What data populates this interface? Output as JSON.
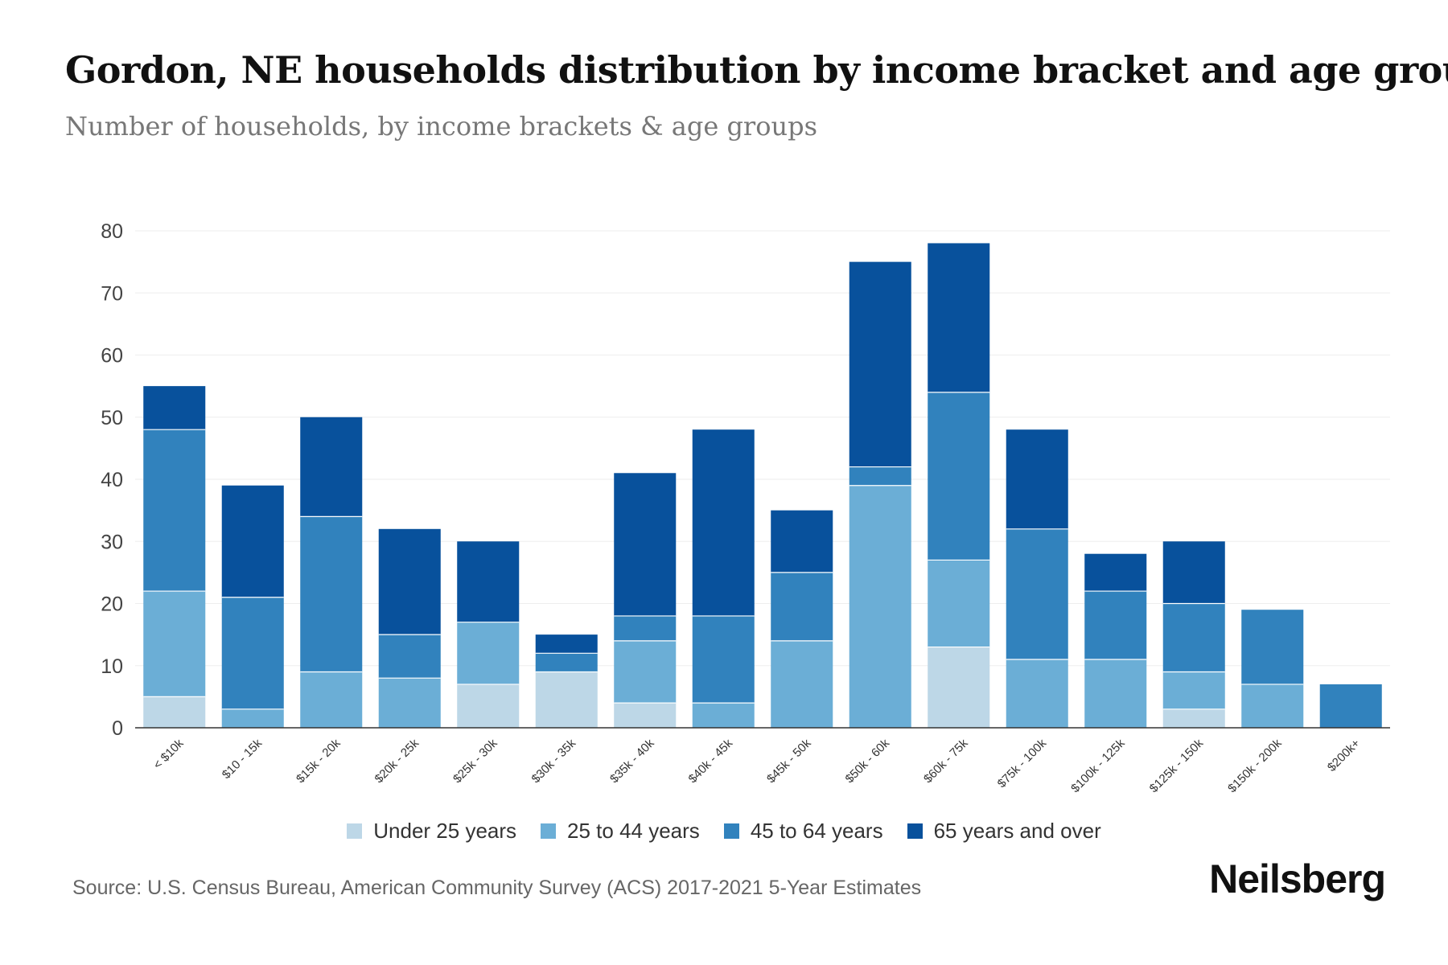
{
  "title": "Gordon, NE households distribution by income bracket and age group",
  "subtitle": "Number of households, by income brackets & age groups",
  "source": "Source: U.S. Census Bureau, American Community Survey (ACS) 2017-2021 5-Year Estimates",
  "brand": "Neilsberg",
  "colors": {
    "under_25": "#bdd7e7",
    "age_25_44": "#6baed6",
    "age_45_64": "#3182bd",
    "age_65_plus": "#08519c",
    "grid": "#eeeeee",
    "axis": "#333333"
  },
  "chart_data": {
    "type": "bar",
    "stacked": true,
    "categories": [
      "< $10k",
      "$10 - 15k",
      "$15k - 20k",
      "$20k - 25k",
      "$25k - 30k",
      "$30k - 35k",
      "$35k - 40k",
      "$40k - 45k",
      "$45k - 50k",
      "$50k - 60k",
      "$60k - 75k",
      "$75k - 100k",
      "$100k - 125k",
      "$125k - 150k",
      "$150k - 200k",
      "$200k+"
    ],
    "series": [
      {
        "name": "Under 25 years",
        "color_key": "under_25",
        "values": [
          5,
          0,
          0,
          0,
          7,
          9,
          4,
          0,
          0,
          0,
          13,
          0,
          0,
          3,
          0,
          0
        ]
      },
      {
        "name": "25 to 44 years",
        "color_key": "age_25_44",
        "values": [
          17,
          3,
          9,
          8,
          10,
          0,
          10,
          4,
          14,
          39,
          14,
          11,
          11,
          6,
          7,
          0
        ]
      },
      {
        "name": "45 to 64 years",
        "color_key": "age_45_64",
        "values": [
          26,
          18,
          25,
          7,
          0,
          3,
          4,
          14,
          11,
          3,
          27,
          21,
          11,
          11,
          12,
          7
        ]
      },
      {
        "name": "65 years and over",
        "color_key": "age_65_plus",
        "values": [
          7,
          18,
          16,
          17,
          13,
          3,
          23,
          30,
          10,
          33,
          24,
          16,
          6,
          10,
          0,
          0
        ]
      }
    ],
    "yticks": [
      0,
      10,
      20,
      30,
      40,
      50,
      60,
      70,
      80
    ],
    "ylim": [
      0,
      80
    ],
    "xlabel": "",
    "ylabel": "",
    "grid": true,
    "legend_position": "bottom-center"
  }
}
